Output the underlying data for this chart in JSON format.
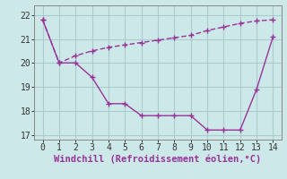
{
  "line1_x": [
    0,
    1,
    2,
    3,
    4,
    5,
    6,
    7,
    8,
    9,
    10,
    11,
    12,
    13,
    14
  ],
  "line1_y": [
    21.8,
    20.0,
    20.0,
    19.4,
    18.3,
    18.3,
    17.8,
    17.8,
    17.8,
    17.8,
    17.2,
    17.2,
    17.2,
    18.9,
    21.1
  ],
  "line2_x": [
    0,
    1,
    2,
    3,
    4,
    5,
    6,
    7,
    8,
    9,
    10,
    11,
    12,
    13,
    14
  ],
  "line2_y": [
    21.8,
    20.0,
    20.3,
    20.5,
    20.65,
    20.75,
    20.85,
    20.95,
    21.05,
    21.15,
    21.35,
    21.5,
    21.65,
    21.75,
    21.8
  ],
  "line_color": "#993399",
  "bg_color": "#cce8e8",
  "grid_color": "#aacccc",
  "xlabel": "Windchill (Refroidissement éolien,°C)",
  "xlim": [
    -0.5,
    14.5
  ],
  "ylim": [
    16.8,
    22.4
  ],
  "yticks": [
    17,
    18,
    19,
    20,
    21,
    22
  ],
  "xticks": [
    0,
    1,
    2,
    3,
    4,
    5,
    6,
    7,
    8,
    9,
    10,
    11,
    12,
    13,
    14
  ],
  "xlabel_fontsize": 7.5,
  "tick_fontsize": 7,
  "marker": "+",
  "markersize": 4,
  "linewidth": 1.0
}
